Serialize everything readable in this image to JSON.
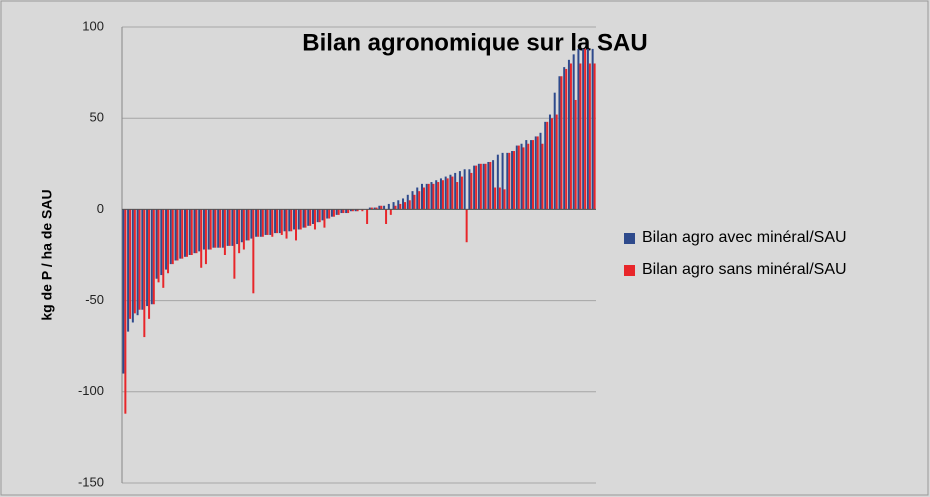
{
  "chart_data": {
    "type": "bar",
    "title": "Bilan agronomique sur la SAU",
    "y_label": "kg de P / ha de SAU",
    "categories": [
      null,
      null,
      null,
      null,
      null,
      null,
      null,
      null,
      null,
      null,
      null,
      null,
      null,
      null,
      null,
      null,
      null,
      null,
      null,
      null,
      null,
      null,
      null,
      null,
      null,
      null,
      null,
      null,
      null,
      null,
      null,
      null,
      null,
      null,
      null,
      null,
      null,
      null,
      null,
      null,
      null,
      null,
      null,
      null,
      null,
      null,
      null,
      null,
      null,
      null,
      null,
      null,
      null,
      null,
      null,
      null,
      null,
      null,
      null,
      null,
      null,
      null,
      null,
      null,
      null,
      null,
      null,
      null,
      null,
      null,
      null,
      null,
      null,
      null,
      null,
      null,
      null,
      null,
      null,
      null,
      null,
      null,
      null,
      null,
      null,
      null,
      null,
      null,
      null,
      null,
      null,
      null,
      null,
      null,
      null,
      null,
      null,
      null,
      null,
      null
    ],
    "series": [
      {
        "name": "Bilan agro avec minéral/SAU",
        "color": "#2e4a8c",
        "values": [
          -90,
          -67,
          -62,
          -58,
          -55,
          -53,
          -52,
          -38,
          -36,
          -33,
          -30,
          -28,
          -27,
          -26,
          -25,
          -24,
          -23,
          -22,
          -22,
          -21,
          -21,
          -21,
          -20,
          -20,
          -19,
          -18,
          -17,
          -16,
          -15,
          -15,
          -14,
          -14,
          -13,
          -13,
          -12,
          -12,
          -11,
          -11,
          -10,
          -9,
          -8,
          -7,
          -6,
          -5,
          -4,
          -3,
          -2,
          -2,
          -1,
          -1,
          0,
          0,
          1,
          1,
          2,
          2,
          3,
          4,
          5,
          6,
          8,
          10,
          12,
          14,
          14,
          15,
          16,
          17,
          18,
          19,
          20,
          21,
          22,
          22,
          24,
          25,
          25,
          26,
          27,
          30,
          31,
          31,
          32,
          35,
          36,
          38,
          38,
          40,
          42,
          48,
          52,
          64,
          73,
          78,
          82,
          85,
          88,
          88,
          88,
          88
        ]
      },
      {
        "name": "Bilan agro sans minéral/SAU",
        "color": "#e8262a",
        "values": [
          -112,
          -60,
          -57,
          -55,
          -70,
          -60,
          -52,
          -40,
          -43,
          -35,
          -30,
          -28,
          -27,
          -26,
          -25,
          -24,
          -32,
          -30,
          -22,
          -21,
          -21,
          -25,
          -20,
          -38,
          -24,
          -22,
          -17,
          -46,
          -15,
          -15,
          -14,
          -15,
          -13,
          -14,
          -16,
          -12,
          -17,
          -11,
          -10,
          -9,
          -11,
          -7,
          -10,
          -5,
          -4,
          -3,
          -2,
          -2,
          -1,
          -1,
          -1,
          -8,
          1,
          1,
          2,
          -8,
          -3,
          2,
          3,
          4,
          5,
          8,
          10,
          12,
          14,
          14,
          15,
          16,
          17,
          18,
          15,
          18,
          -18,
          20,
          24,
          25,
          25,
          26,
          12,
          12,
          11,
          31,
          32,
          35,
          34,
          36,
          38,
          40,
          36,
          48,
          50,
          52,
          73,
          77,
          80,
          60,
          80,
          88,
          80,
          80
        ]
      }
    ],
    "ylim": [
      -150,
      100
    ],
    "yticks": [
      -150,
      -100,
      -50,
      0,
      50,
      100
    ],
    "grid": true
  }
}
